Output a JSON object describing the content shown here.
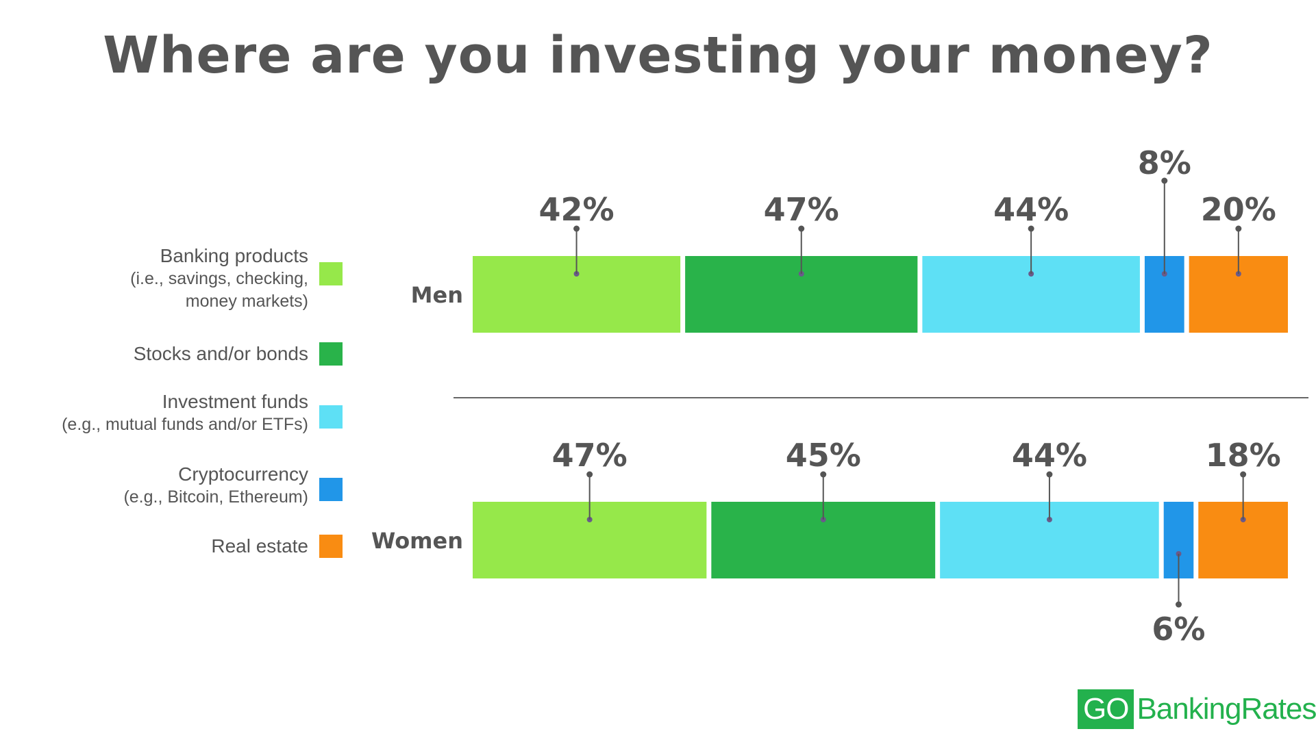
{
  "chart_data": {
    "type": "bar",
    "stacked": true,
    "orientation": "horizontal",
    "title": "Where are you investing your money?",
    "categories": [
      "Men",
      "Women"
    ],
    "series": [
      {
        "name": "Banking products (i.e., savings, checking, money markets)",
        "values": [
          42,
          47
        ],
        "value_labels": [
          "42%",
          "47%"
        ],
        "color": "#96e84a"
      },
      {
        "name": "Stocks and/or bonds",
        "values": [
          47,
          45
        ],
        "value_labels": [
          "47%",
          "45%"
        ],
        "color": "#29b34a"
      },
      {
        "name": "Investment funds (e.g., mutual funds and/or ETFs)",
        "values": [
          44,
          44
        ],
        "value_labels": [
          "44%",
          "44%"
        ],
        "color": "#5ee0f5"
      },
      {
        "name": "Cryptocurrency (e.g., Bitcoin, Ethereum)",
        "values": [
          8,
          6
        ],
        "value_labels": [
          "8%",
          "6%"
        ],
        "color": "#2196e8"
      },
      {
        "name": "Real estate",
        "values": [
          20,
          18
        ],
        "value_labels": [
          "20%",
          "18%"
        ],
        "color": "#f98c12"
      }
    ],
    "legend_position": "left",
    "grid": false
  },
  "legend": [
    {
      "line1": "Banking products",
      "line2": "(i.e., savings, checking,",
      "line3": "money markets)",
      "color": "#96e84a"
    },
    {
      "line1": "Stocks and/or bonds",
      "line2": "",
      "line3": "",
      "color": "#29b34a"
    },
    {
      "line1": "Investment funds",
      "line2": "(e.g., mutual funds and/or ETFs)",
      "line3": "",
      "color": "#5ee0f5"
    },
    {
      "line1": "Cryptocurrency",
      "line2": "(e.g., Bitcoin, Ethereum)",
      "line3": "",
      "color": "#2196e8"
    },
    {
      "line1": "Real estate",
      "line2": "",
      "line3": "",
      "color": "#f98c12"
    }
  ],
  "logo": {
    "go": "GO",
    "rest": "BankingRates"
  }
}
